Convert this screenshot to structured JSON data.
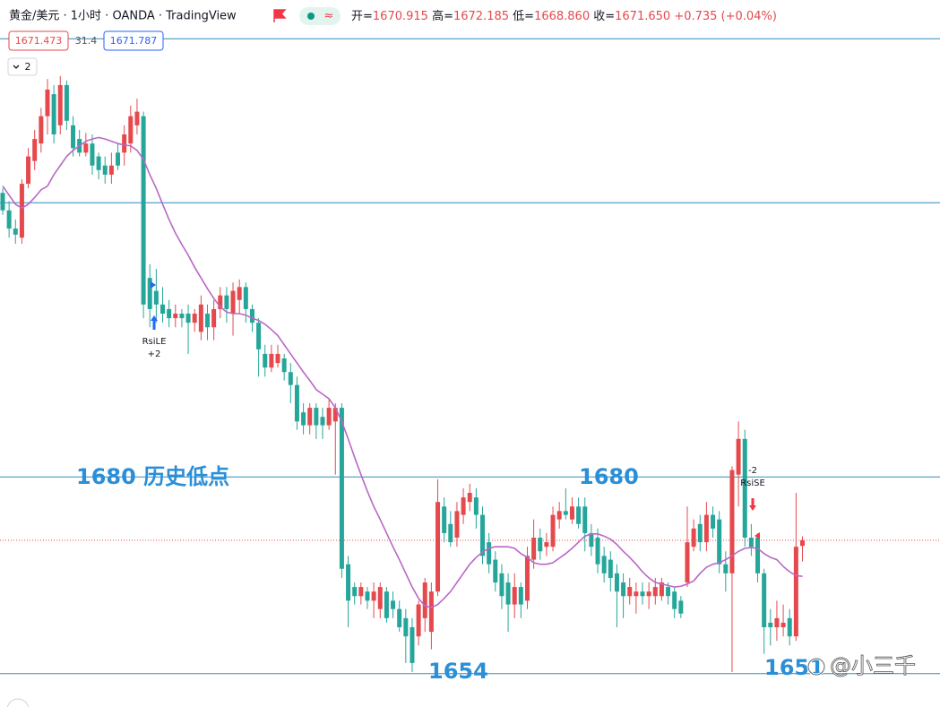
{
  "header": {
    "symbol": "黄金/美元 · 1小时 · OANDA · TradingView",
    "ohlc": [
      {
        "label": "开=",
        "value": "1670.915"
      },
      {
        "label": "高=",
        "value": "1672.185"
      },
      {
        "label": "低=",
        "value": "1668.860"
      },
      {
        "label": "收=",
        "value": "1671.650"
      }
    ],
    "change": "+0.735 (+0.04%)"
  },
  "indicators": {
    "values": [
      "1671.473",
      "31.4",
      "1671.787"
    ],
    "collapsed_count": "2"
  },
  "watermark": "@小三千",
  "chart_data": {
    "type": "candlestick",
    "ylim": [
      1649.7,
      1742.8
    ],
    "up_color": "#e5494d",
    "down_color": "#26a69a",
    "candles": [
      [
        1717.4,
        1718.0,
        1714.5,
        1715.1
      ],
      [
        1715.1,
        1716.3,
        1711.5,
        1712.7
      ],
      [
        1712.7,
        1713.9,
        1710.7,
        1711.9
      ],
      [
        1711.5,
        1719.2,
        1710.7,
        1718.6
      ],
      [
        1718.6,
        1723.3,
        1718.0,
        1722.2
      ],
      [
        1721.6,
        1725.7,
        1720.4,
        1724.5
      ],
      [
        1723.9,
        1728.6,
        1722.7,
        1727.5
      ],
      [
        1727.5,
        1732.4,
        1725.1,
        1731.0
      ],
      [
        1730.4,
        1731.6,
        1723.9,
        1725.1
      ],
      [
        1726.3,
        1732.8,
        1725.1,
        1731.6
      ],
      [
        1731.6,
        1732.2,
        1725.7,
        1726.9
      ],
      [
        1726.3,
        1727.5,
        1722.2,
        1723.3
      ],
      [
        1724.5,
        1725.7,
        1722.2,
        1722.7
      ],
      [
        1722.7,
        1725.3,
        1722.2,
        1723.9
      ],
      [
        1723.9,
        1725.1,
        1719.8,
        1721.0
      ],
      [
        1722.2,
        1722.7,
        1719.2,
        1720.4
      ],
      [
        1721.0,
        1722.2,
        1718.6,
        1719.8
      ],
      [
        1719.8,
        1722.7,
        1718.6,
        1721.0
      ],
      [
        1722.7,
        1723.9,
        1720.4,
        1721.0
      ],
      [
        1722.7,
        1726.3,
        1721.0,
        1725.1
      ],
      [
        1723.9,
        1728.9,
        1722.7,
        1727.5
      ],
      [
        1726.3,
        1729.8,
        1725.1,
        1728.1
      ],
      [
        1727.5,
        1728.1,
        1700.9,
        1702.7
      ],
      [
        1706.2,
        1708.0,
        1699.7,
        1702.1
      ],
      [
        1704.5,
        1707.4,
        1700.3,
        1702.7
      ],
      [
        1702.7,
        1705.0,
        1700.3,
        1701.5
      ],
      [
        1702.1,
        1703.3,
        1699.7,
        1700.9
      ],
      [
        1700.9,
        1702.7,
        1699.7,
        1701.5
      ],
      [
        1701.5,
        1702.1,
        1699.7,
        1700.9
      ],
      [
        1701.5,
        1702.7,
        1696.2,
        1700.3
      ],
      [
        1700.3,
        1702.1,
        1699.1,
        1701.5
      ],
      [
        1699.1,
        1703.9,
        1698.0,
        1702.7
      ],
      [
        1701.5,
        1702.7,
        1698.0,
        1699.7
      ],
      [
        1699.7,
        1703.3,
        1698.0,
        1702.1
      ],
      [
        1702.1,
        1705.0,
        1700.9,
        1703.9
      ],
      [
        1703.9,
        1705.0,
        1700.3,
        1702.1
      ],
      [
        1701.5,
        1705.6,
        1698.6,
        1704.5
      ],
      [
        1703.3,
        1706.0,
        1701.5,
        1705.0
      ],
      [
        1705.0,
        1705.6,
        1700.3,
        1702.1
      ],
      [
        1702.1,
        1702.7,
        1699.1,
        1700.3
      ],
      [
        1700.3,
        1700.9,
        1693.2,
        1696.8
      ],
      [
        1696.2,
        1697.4,
        1693.2,
        1694.4
      ],
      [
        1694.4,
        1697.4,
        1693.8,
        1696.2
      ],
      [
        1695.0,
        1697.4,
        1694.4,
        1696.2
      ],
      [
        1695.6,
        1696.2,
        1692.7,
        1693.8
      ],
      [
        1693.8,
        1695.0,
        1689.7,
        1692.1
      ],
      [
        1692.1,
        1693.2,
        1686.2,
        1687.3
      ],
      [
        1688.5,
        1689.7,
        1685.6,
        1686.8
      ],
      [
        1686.8,
        1689.7,
        1685.6,
        1689.1
      ],
      [
        1689.1,
        1689.7,
        1685.0,
        1686.8
      ],
      [
        1687.9,
        1689.1,
        1685.0,
        1686.8
      ],
      [
        1686.8,
        1690.3,
        1686.2,
        1689.1
      ],
      [
        1687.3,
        1689.7,
        1680.3,
        1689.1
      ],
      [
        1689.1,
        1689.7,
        1666.7,
        1667.9
      ],
      [
        1668.5,
        1669.6,
        1660.2,
        1663.7
      ],
      [
        1665.5,
        1666.1,
        1663.2,
        1664.3
      ],
      [
        1664.3,
        1666.1,
        1663.2,
        1665.5
      ],
      [
        1664.9,
        1665.5,
        1662.6,
        1663.7
      ],
      [
        1663.7,
        1666.1,
        1661.4,
        1664.9
      ],
      [
        1662.6,
        1666.1,
        1661.4,
        1665.5
      ],
      [
        1664.9,
        1665.5,
        1660.8,
        1661.4
      ],
      [
        1663.7,
        1664.9,
        1661.4,
        1662.6
      ],
      [
        1662.6,
        1663.7,
        1659.6,
        1660.2
      ],
      [
        1661.4,
        1662.6,
        1655.5,
        1659.0
      ],
      [
        1660.2,
        1661.4,
        1654.3,
        1655.5
      ],
      [
        1659.0,
        1663.7,
        1657.8,
        1663.2
      ],
      [
        1661.4,
        1666.7,
        1659.6,
        1666.1
      ],
      [
        1659.6,
        1666.1,
        1657.3,
        1664.9
      ],
      [
        1664.9,
        1679.7,
        1664.3,
        1676.7
      ],
      [
        1676.1,
        1677.3,
        1671.4,
        1672.6
      ],
      [
        1673.8,
        1675.5,
        1670.8,
        1671.4
      ],
      [
        1672.0,
        1676.7,
        1670.8,
        1675.5
      ],
      [
        1675.0,
        1678.5,
        1673.8,
        1677.3
      ],
      [
        1676.7,
        1679.1,
        1675.5,
        1677.9
      ],
      [
        1677.3,
        1678.5,
        1673.2,
        1675.0
      ],
      [
        1675.0,
        1676.1,
        1668.5,
        1669.6
      ],
      [
        1671.4,
        1672.6,
        1667.3,
        1668.5
      ],
      [
        1669.1,
        1670.2,
        1664.9,
        1666.1
      ],
      [
        1667.3,
        1668.5,
        1662.6,
        1664.3
      ],
      [
        1666.1,
        1667.3,
        1659.6,
        1663.2
      ],
      [
        1663.2,
        1667.3,
        1661.4,
        1665.5
      ],
      [
        1665.5,
        1666.1,
        1661.4,
        1663.2
      ],
      [
        1663.7,
        1670.8,
        1662.6,
        1669.6
      ],
      [
        1669.1,
        1674.4,
        1667.9,
        1672.0
      ],
      [
        1672.0,
        1673.2,
        1669.1,
        1670.2
      ],
      [
        1670.8,
        1672.6,
        1669.6,
        1671.4
      ],
      [
        1670.8,
        1676.1,
        1670.2,
        1675.0
      ],
      [
        1674.4,
        1676.7,
        1673.2,
        1675.5
      ],
      [
        1675.5,
        1678.5,
        1674.4,
        1675.0
      ],
      [
        1674.4,
        1677.3,
        1673.8,
        1676.1
      ],
      [
        1676.1,
        1677.3,
        1673.2,
        1673.8
      ],
      [
        1676.1,
        1677.3,
        1670.2,
        1672.6
      ],
      [
        1672.6,
        1673.8,
        1669.6,
        1670.8
      ],
      [
        1672.0,
        1673.2,
        1667.3,
        1668.5
      ],
      [
        1669.6,
        1670.8,
        1666.1,
        1667.3
      ],
      [
        1669.1,
        1670.2,
        1664.9,
        1666.7
      ],
      [
        1667.3,
        1668.5,
        1660.2,
        1664.9
      ],
      [
        1666.1,
        1667.3,
        1661.4,
        1664.3
      ],
      [
        1664.3,
        1666.7,
        1663.2,
        1665.5
      ],
      [
        1664.3,
        1666.1,
        1662.0,
        1664.9
      ],
      [
        1664.9,
        1666.1,
        1663.2,
        1664.3
      ],
      [
        1664.3,
        1666.1,
        1662.6,
        1664.9
      ],
      [
        1664.3,
        1666.7,
        1663.2,
        1665.5
      ],
      [
        1664.3,
        1666.7,
        1663.7,
        1666.1
      ],
      [
        1665.5,
        1666.1,
        1663.2,
        1664.3
      ],
      [
        1664.9,
        1665.5,
        1661.4,
        1662.6
      ],
      [
        1663.7,
        1664.3,
        1661.4,
        1662.0
      ],
      [
        1666.1,
        1676.1,
        1665.5,
        1671.4
      ],
      [
        1670.8,
        1674.4,
        1670.2,
        1673.2
      ],
      [
        1673.8,
        1675.0,
        1670.2,
        1671.4
      ],
      [
        1671.4,
        1676.7,
        1670.2,
        1675.0
      ],
      [
        1675.0,
        1676.1,
        1672.0,
        1673.2
      ],
      [
        1674.4,
        1675.5,
        1667.3,
        1668.5
      ],
      [
        1668.5,
        1670.2,
        1664.9,
        1667.3
      ],
      [
        1667.3,
        1681.4,
        1654.3,
        1680.9
      ],
      [
        1680.3,
        1687.3,
        1676.1,
        1685.0
      ],
      [
        1685.0,
        1686.2,
        1670.8,
        1672.0
      ],
      [
        1672.0,
        1673.8,
        1669.6,
        1670.8
      ],
      [
        1672.0,
        1672.6,
        1666.1,
        1667.3
      ],
      [
        1667.3,
        1667.9,
        1656.7,
        1660.2
      ],
      [
        1660.8,
        1662.6,
        1657.8,
        1660.2
      ],
      [
        1660.2,
        1663.7,
        1658.4,
        1661.4
      ],
      [
        1660.2,
        1663.2,
        1659.0,
        1660.8
      ],
      [
        1661.4,
        1662.6,
        1657.8,
        1659.0
      ],
      [
        1659.0,
        1677.9,
        1658.4,
        1670.8
      ],
      [
        1670.915,
        1672.185,
        1668.86,
        1671.65
      ]
    ],
    "ma": {
      "color": "#b967c7",
      "values": [
        1718.3,
        1717.1,
        1715.9,
        1715.4,
        1715.9,
        1716.8,
        1717.8,
        1718.3,
        1719.8,
        1721.0,
        1722.2,
        1723.0,
        1723.6,
        1724.2,
        1724.5,
        1724.7,
        1724.5,
        1724.2,
        1723.9,
        1723.7,
        1723.6,
        1723.0,
        1721.8,
        1719.8,
        1718.0,
        1715.9,
        1713.9,
        1712.1,
        1710.6,
        1709.2,
        1707.6,
        1706.2,
        1704.8,
        1703.5,
        1702.4,
        1701.7,
        1701.5,
        1701.5,
        1701.3,
        1700.9,
        1700.6,
        1700.1,
        1699.4,
        1698.6,
        1697.4,
        1696.2,
        1695.0,
        1693.8,
        1692.7,
        1691.5,
        1690.9,
        1690.3,
        1689.1,
        1687.3,
        1685.0,
        1682.6,
        1680.3,
        1678.1,
        1676.1,
        1674.4,
        1672.6,
        1670.8,
        1669.1,
        1667.3,
        1665.5,
        1664.0,
        1663.0,
        1662.8,
        1663.2,
        1664.0,
        1664.9,
        1666.1,
        1667.3,
        1668.5,
        1669.4,
        1670.1,
        1670.6,
        1670.8,
        1670.8,
        1670.8,
        1670.6,
        1669.9,
        1669.4,
        1668.7,
        1668.5,
        1668.5,
        1668.7,
        1669.3,
        1669.9,
        1670.6,
        1671.4,
        1672.2,
        1672.5,
        1672.5,
        1672.2,
        1671.8,
        1671.1,
        1670.2,
        1669.4,
        1668.5,
        1667.5,
        1666.7,
        1666.1,
        1665.9,
        1665.7,
        1665.5,
        1665.6,
        1665.9,
        1666.3,
        1667.3,
        1668.1,
        1668.5,
        1668.7,
        1669.1,
        1669.6,
        1670.2,
        1670.6,
        1670.7,
        1670.6,
        1669.9,
        1669.4,
        1669.1,
        1668.2,
        1667.5,
        1667.0,
        1666.9
      ]
    },
    "levels": [
      1737.7,
      1716.1,
      1680,
      1654.1
    ],
    "level_color": "#2b8bbf",
    "last_price_color": "#e5494d",
    "annotations": [
      "1680 历史低点",
      "1680",
      "1654",
      "1651"
    ],
    "signals": [
      {
        "name": "RsiLE",
        "qty": "+2"
      },
      {
        "name": "RsiSE",
        "qty": "-2"
      }
    ]
  }
}
